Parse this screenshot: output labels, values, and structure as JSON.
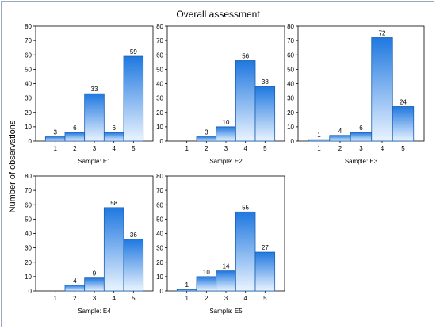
{
  "figure": {
    "title": "Overall assessment",
    "ylabel": "Number of observations"
  },
  "chart_data": [
    {
      "type": "bar",
      "xlabel": "Sample: E1",
      "categories": [
        "1",
        "2",
        "3",
        "4",
        "5"
      ],
      "values": [
        3,
        6,
        33,
        6,
        59
      ],
      "ylim": [
        0,
        80
      ],
      "yticks": [
        0,
        10,
        20,
        30,
        40,
        50,
        60,
        70,
        80
      ]
    },
    {
      "type": "bar",
      "xlabel": "Sample: E2",
      "categories": [
        "1",
        "2",
        "3",
        "4",
        "5"
      ],
      "values": [
        0,
        3,
        10,
        56,
        38
      ],
      "ylim": [
        0,
        80
      ],
      "yticks": [
        0,
        10,
        20,
        30,
        40,
        50,
        60,
        70,
        80
      ]
    },
    {
      "type": "bar",
      "xlabel": "Sample: E3",
      "categories": [
        "1",
        "2",
        "3",
        "4",
        "5"
      ],
      "values": [
        1,
        4,
        6,
        72,
        24
      ],
      "ylim": [
        0,
        80
      ],
      "yticks": [
        0,
        10,
        20,
        30,
        40,
        50,
        60,
        70,
        80
      ]
    },
    {
      "type": "bar",
      "xlabel": "Sample: E4",
      "categories": [
        "1",
        "2",
        "3",
        "4",
        "5"
      ],
      "values": [
        0,
        4,
        9,
        58,
        36
      ],
      "ylim": [
        0,
        80
      ],
      "yticks": [
        0,
        10,
        20,
        30,
        40,
        50,
        60,
        70,
        80
      ]
    },
    {
      "type": "bar",
      "xlabel": "Sample: E5",
      "categories": [
        "1",
        "2",
        "3",
        "4",
        "5"
      ],
      "values": [
        1,
        10,
        14,
        55,
        27
      ],
      "ylim": [
        0,
        80
      ],
      "yticks": [
        0,
        10,
        20,
        30,
        40,
        50,
        60,
        70,
        80
      ]
    }
  ],
  "colors": {
    "bar_fill_top": "#1f78e0",
    "bar_fill_bottom": "#eaf4ff",
    "bar_stroke": "#1a5fb0",
    "axis": "#000000",
    "frame": "#9aa8c0"
  }
}
